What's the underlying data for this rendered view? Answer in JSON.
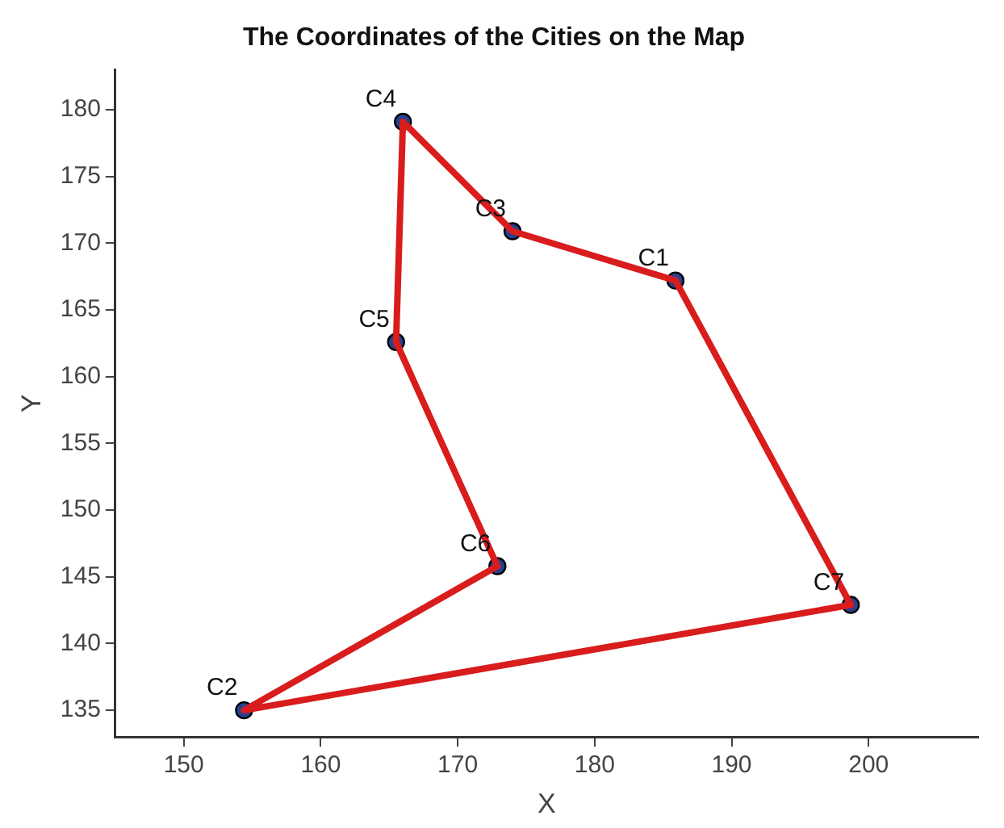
{
  "chart_data": {
    "type": "scatter",
    "title": "The Coordinates of the Cities on the Map",
    "xlabel": "X",
    "ylabel": "Y",
    "xlim": [
      145,
      208
    ],
    "xticks": [
      150,
      160,
      170,
      180,
      190,
      200
    ],
    "ylim": [
      133,
      183
    ],
    "yticks": [
      135,
      140,
      145,
      150,
      155,
      160,
      165,
      170,
      175,
      180
    ],
    "grid": false,
    "legend": false,
    "series": [
      {
        "type": "scatter",
        "color": "#26418f",
        "marker": "circle",
        "x": [
          185.9,
          154.4,
          174.0,
          166.0,
          165.5,
          172.9,
          198.7
        ],
        "values": [
          167.2,
          135.0,
          170.9,
          179.1,
          162.6,
          145.8,
          142.9
        ]
      },
      {
        "type": "line",
        "color": "#d91c1c",
        "marker": "none",
        "line_style": "solid",
        "x": [
          185.9,
          174.0,
          166.0,
          165.5,
          172.9,
          154.4,
          198.7
        ],
        "values": [
          167.2,
          170.9,
          179.1,
          162.6,
          145.8,
          135.0,
          142.9
        ]
      },
      {
        "type": "line",
        "color": "#d91c1c",
        "marker": "none",
        "line_style": "solid",
        "x": [
          198.7,
          185.9
        ],
        "values": [
          142.9,
          167.2
        ]
      }
    ],
    "annotations": [
      {
        "text": "C1",
        "x": 185.9,
        "y": 167.2
      },
      {
        "text": "C2",
        "x": 154.4,
        "y": 135.0
      },
      {
        "text": "C3",
        "x": 174.0,
        "y": 170.9
      },
      {
        "text": "C4",
        "x": 166.0,
        "y": 179.1
      },
      {
        "text": "C5",
        "x": 165.5,
        "y": 162.6
      },
      {
        "text": "C6",
        "x": 172.9,
        "y": 145.8
      },
      {
        "text": "C7",
        "x": 198.7,
        "y": 142.9
      }
    ]
  }
}
